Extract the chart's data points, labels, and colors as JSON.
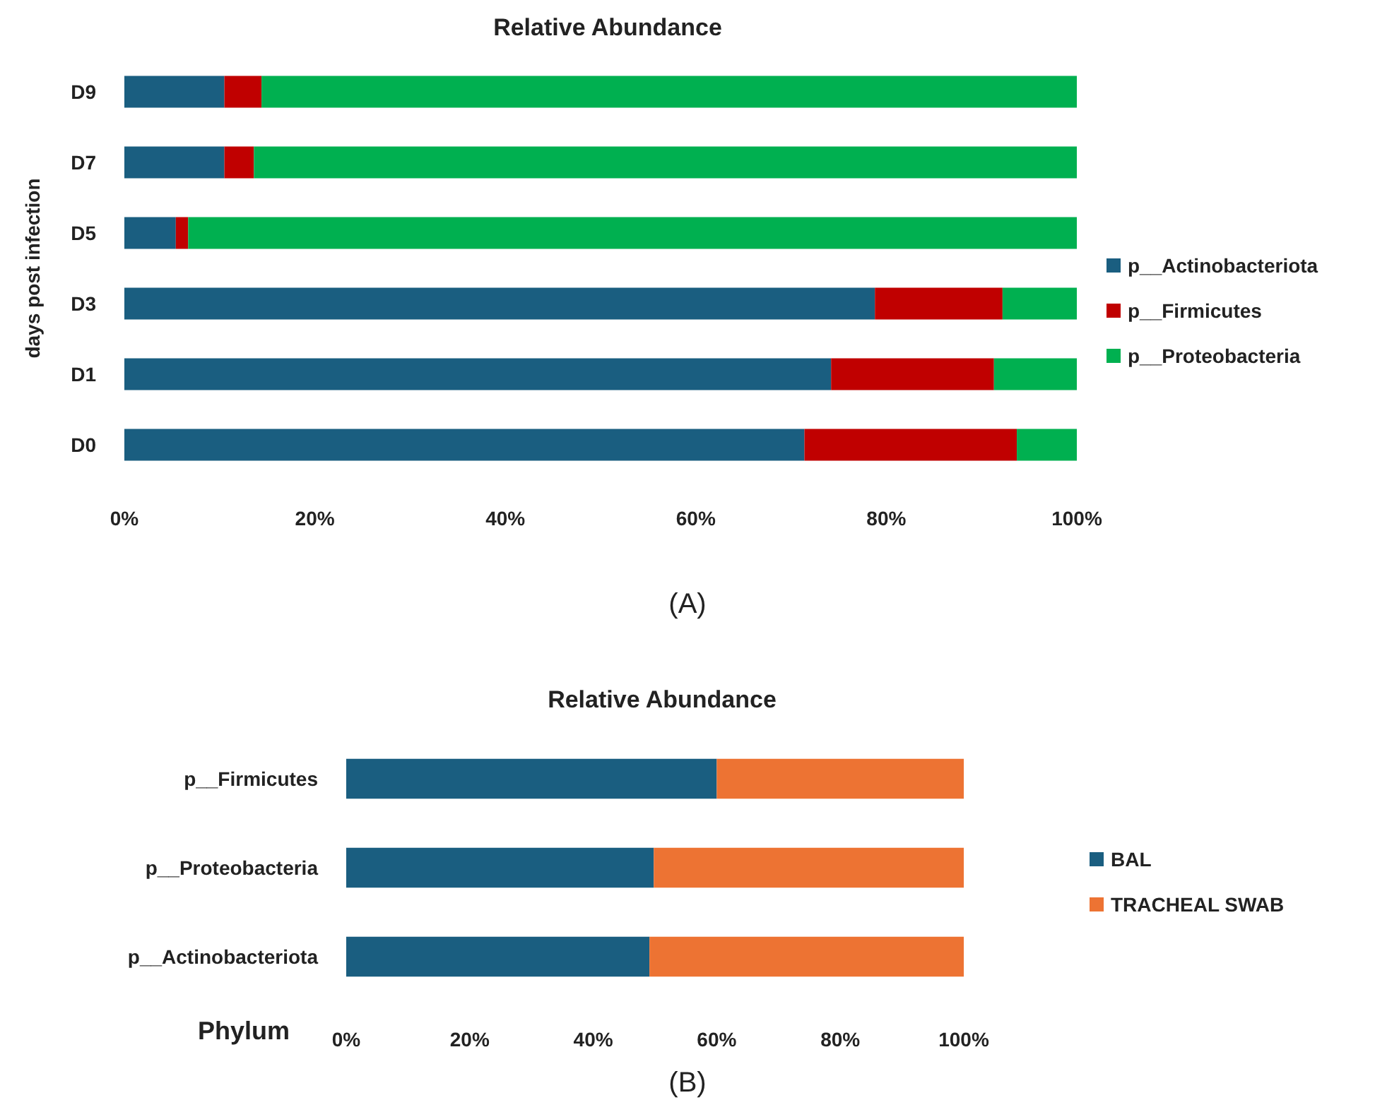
{
  "chart_data": [
    {
      "type": "bar",
      "orientation": "horizontal",
      "stacked": true,
      "title": "Relative Abundance",
      "ylabel": "days post infection",
      "categories": [
        "D9",
        "D7",
        "D5",
        "D3",
        "D1",
        "D0"
      ],
      "series": [
        {
          "name": "p__Actinobacteriota",
          "color": "#1a5e80",
          "values": [
            10.5,
            10.5,
            5.4,
            78.8,
            74.2,
            71.4
          ]
        },
        {
          "name": "p__Firmicutes",
          "color": "#c00000",
          "values": [
            3.9,
            3.1,
            1.3,
            13.4,
            17.1,
            22.3
          ]
        },
        {
          "name": "p__Proteobacteria",
          "color": "#00b050",
          "values": [
            85.6,
            86.4,
            93.3,
            7.8,
            8.7,
            6.3
          ]
        }
      ],
      "xlim": [
        0,
        100
      ],
      "xticks": [
        {
          "value": 0,
          "label": "0%"
        },
        {
          "value": 20,
          "label": "20%"
        },
        {
          "value": 40,
          "label": "40%"
        },
        {
          "value": 60,
          "label": "60%"
        },
        {
          "value": 80,
          "label": "80%"
        },
        {
          "value": 100,
          "label": "100%"
        }
      ],
      "grid": false,
      "legend": "right",
      "annotations": [
        "(A)"
      ]
    },
    {
      "type": "bar",
      "orientation": "horizontal",
      "stacked": true,
      "title": "Relative Abundance",
      "ylabel": "Phylum",
      "categories": [
        "p__Firmicutes",
        "p__Proteobacteria",
        "p__Actinobacteriota"
      ],
      "series": [
        {
          "name": "BAL",
          "color": "#1a5e80",
          "values": [
            60.0,
            49.8,
            49.1
          ]
        },
        {
          "name": "TRACHEAL SWAB",
          "color": "#ed7333",
          "values": [
            40.0,
            50.2,
            50.9
          ]
        }
      ],
      "xlim": [
        0,
        100
      ],
      "xticks": [
        {
          "value": 0,
          "label": "0%"
        },
        {
          "value": 20,
          "label": "20%"
        },
        {
          "value": 40,
          "label": "40%"
        },
        {
          "value": 60,
          "label": "60%"
        },
        {
          "value": 80,
          "label": "80%"
        },
        {
          "value": 100,
          "label": "100%"
        }
      ],
      "grid": false,
      "legend": "right",
      "annotations": [
        "(B)"
      ]
    }
  ]
}
